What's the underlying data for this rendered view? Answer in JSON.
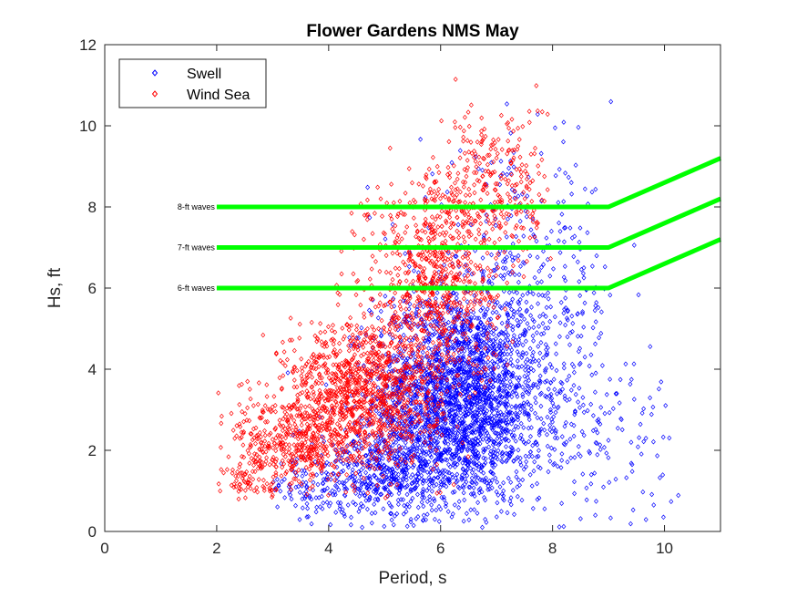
{
  "chart_data": {
    "type": "scatter",
    "title": "Flower Gardens NMS May",
    "xlabel": "Period, s",
    "ylabel": "Hs, ft",
    "xlim": [
      0,
      11
    ],
    "ylim": [
      0,
      12
    ],
    "xticks": [
      0,
      2,
      4,
      6,
      8,
      10
    ],
    "yticks": [
      0,
      2,
      4,
      6,
      8,
      10,
      12
    ],
    "grid": false,
    "legend_position": "top-left",
    "marker": "diamond-open",
    "series": [
      {
        "name": "Swell",
        "color": "#0000ff",
        "clusters": [
          {
            "x_mean": 6.3,
            "x_sd": 0.75,
            "y_mean": 3.3,
            "y_sd": 1.3,
            "count": 2300
          },
          {
            "x_mean": 5.1,
            "x_sd": 0.8,
            "y_mean": 1.5,
            "y_sd": 0.55,
            "count": 500
          },
          {
            "x_mean": 7.4,
            "x_sd": 0.9,
            "y_mean": 5.5,
            "y_sd": 1.8,
            "count": 450
          },
          {
            "x_mean": 8.6,
            "x_sd": 0.8,
            "y_mean": 2.2,
            "y_sd": 1.1,
            "count": 180
          },
          {
            "x_mean": 3.7,
            "x_sd": 0.6,
            "y_mean": 1.0,
            "y_sd": 0.5,
            "count": 120
          }
        ],
        "x_range": [
          3.0,
          10.3
        ],
        "y_range": [
          0.1,
          10.7
        ]
      },
      {
        "name": "Wind Sea",
        "color": "#ff0000",
        "clusters": [
          {
            "x_mean": 4.6,
            "x_sd": 0.7,
            "y_mean": 3.4,
            "y_sd": 0.9,
            "count": 1100
          },
          {
            "x_mean": 3.4,
            "x_sd": 0.55,
            "y_mean": 2.2,
            "y_sd": 0.6,
            "count": 400
          },
          {
            "x_mean": 5.9,
            "x_sd": 0.6,
            "y_mean": 6.3,
            "y_sd": 1.3,
            "count": 750
          },
          {
            "x_mean": 7.0,
            "x_sd": 0.5,
            "y_mean": 8.6,
            "y_sd": 1.0,
            "count": 250
          },
          {
            "x_mean": 2.6,
            "x_sd": 0.3,
            "y_mean": 1.3,
            "y_sd": 0.3,
            "count": 80
          }
        ],
        "x_range": [
          2.0,
          8.0
        ],
        "y_range": [
          0.8,
          11.2
        ]
      }
    ],
    "threshold_lines": [
      {
        "label": "8-ft waves",
        "color": "#00ff00",
        "points": [
          [
            2,
            8
          ],
          [
            9,
            8
          ],
          [
            11,
            9.2
          ]
        ]
      },
      {
        "label": "7-ft waves",
        "color": "#00ff00",
        "points": [
          [
            2,
            7
          ],
          [
            9,
            7
          ],
          [
            11,
            8.2
          ]
        ]
      },
      {
        "label": "6-ft waves",
        "color": "#00ff00",
        "points": [
          [
            2,
            6
          ],
          [
            9,
            6
          ],
          [
            11,
            7.2
          ]
        ]
      }
    ]
  }
}
